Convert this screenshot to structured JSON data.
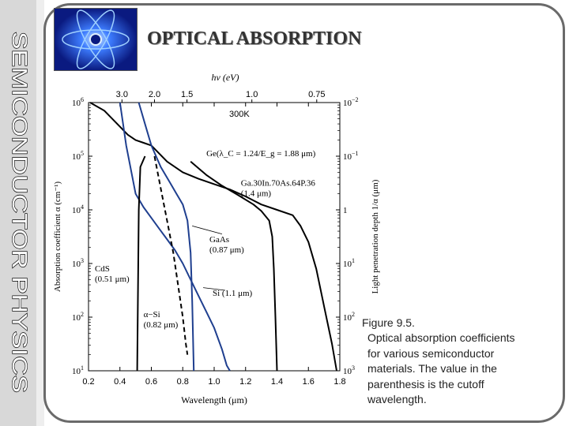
{
  "slide": {
    "title": "OPTICAL ABSORPTION",
    "side_banner": "SEMICONDUCTOR PHYSICS",
    "caption": [
      "Figure 9.5.",
      "Optical absorption coefficients",
      "for various semiconductor",
      "materials. The value in the",
      "parenthesis is the cutoff",
      "wavelength."
    ],
    "colors": {
      "frame": "#6a6a6a",
      "band": "#d8d8d8",
      "logo_bg": "#0a1a80",
      "si_curve": "#1f3f8f",
      "black_curve": "#000000"
    }
  },
  "chart_data": {
    "type": "line",
    "xlabel": "Wavelength (μm)",
    "ylabel": "Absorption coefficient α (cm⁻¹)",
    "y2label": "Light penetration depth 1/α (μm)",
    "x2label": "hν (eV)",
    "annotation_temp": "300K",
    "xlim": [
      0.2,
      1.8
    ],
    "ylim_log10": [
      1,
      6
    ],
    "x_ticks": [
      0.2,
      0.4,
      0.6,
      0.8,
      1.0,
      1.2,
      1.4,
      1.6,
      1.8
    ],
    "x_tick_labels": [
      "0.2",
      "0.4",
      "0.6",
      "0.8",
      "1.0",
      "1.2",
      "1.4",
      "1.6",
      "1.8"
    ],
    "y_ticks_log10": [
      1,
      2,
      3,
      4,
      5,
      6
    ],
    "y_tick_labels": [
      {
        "base": "10",
        "exp": "1"
      },
      {
        "base": "10",
        "exp": "2"
      },
      {
        "base": "10",
        "exp": "3"
      },
      {
        "base": "10",
        "exp": "4"
      },
      {
        "base": "10",
        "exp": "5"
      },
      {
        "base": "10",
        "exp": "6"
      }
    ],
    "y2_tick_labels": [
      {
        "base": "10",
        "exp": "3"
      },
      {
        "base": "10",
        "exp": "2"
      },
      {
        "base": "10",
        "exp": "1"
      },
      {
        "base": "1",
        "exp": ""
      },
      {
        "base": "10",
        "exp": "−1"
      },
      {
        "base": "10",
        "exp": "−2"
      }
    ],
    "top_ticks": [
      {
        "wavelength": 0.413,
        "label": "3.0"
      },
      {
        "wavelength": 0.62,
        "label": "2.0"
      },
      {
        "wavelength": 0.827,
        "label": "1.5"
      },
      {
        "wavelength": 1.24,
        "label": "1.0"
      },
      {
        "wavelength": 1.653,
        "label": "0.75"
      }
    ],
    "series": [
      {
        "name": "Ge",
        "label_lines": [
          "Ge(λ_C = 1.24/E_g = 1.88 μm)"
        ],
        "color": "#000000",
        "dash": false,
        "points": [
          [
            0.21,
            6
          ],
          [
            0.3,
            5.85
          ],
          [
            0.4,
            5.55
          ],
          [
            0.45,
            5.4
          ],
          [
            0.5,
            5.3
          ],
          [
            0.55,
            5.25
          ],
          [
            0.6,
            5.2
          ],
          [
            0.65,
            5.05
          ],
          [
            0.7,
            4.9
          ],
          [
            0.8,
            4.7
          ],
          [
            0.9,
            4.58
          ],
          [
            1.0,
            4.48
          ],
          [
            1.1,
            4.38
          ],
          [
            1.2,
            4.25
          ],
          [
            1.3,
            4.1
          ],
          [
            1.4,
            4.0
          ],
          [
            1.5,
            3.9
          ],
          [
            1.55,
            3.7
          ],
          [
            1.6,
            3.4
          ],
          [
            1.65,
            2.9
          ],
          [
            1.7,
            2.2
          ],
          [
            1.75,
            1.5
          ],
          [
            1.78,
            1
          ]
        ]
      },
      {
        "name": "Ga.30In.70As.64P.36",
        "label_lines": [
          "Ga.30In.70As.64P.36",
          "(1.4 μm)"
        ],
        "color": "#000000",
        "dash": false,
        "points": [
          [
            0.85,
            4.9
          ],
          [
            0.95,
            4.65
          ],
          [
            1.05,
            4.45
          ],
          [
            1.15,
            4.28
          ],
          [
            1.25,
            4.1
          ],
          [
            1.3,
            3.98
          ],
          [
            1.35,
            3.8
          ],
          [
            1.37,
            3.5
          ],
          [
            1.38,
            2.9
          ],
          [
            1.39,
            2
          ],
          [
            1.4,
            1
          ]
        ]
      },
      {
        "name": "GaAs",
        "label_lines": [
          "GaAs",
          "(0.87 μm)"
        ],
        "color": "#1f3f8f",
        "dash": false,
        "points": [
          [
            0.52,
            6
          ],
          [
            0.56,
            5.6
          ],
          [
            0.6,
            5.2
          ],
          [
            0.66,
            4.8
          ],
          [
            0.72,
            4.5
          ],
          [
            0.76,
            4.3
          ],
          [
            0.8,
            4.1
          ],
          [
            0.83,
            3.8
          ],
          [
            0.85,
            3.2
          ],
          [
            0.86,
            2.3
          ],
          [
            0.87,
            1
          ]
        ]
      },
      {
        "name": "Si",
        "label_lines": [
          "Si (1.1 μm)"
        ],
        "color": "#1f3f8f",
        "dash": false,
        "points": [
          [
            0.4,
            6
          ],
          [
            0.44,
            5.2
          ],
          [
            0.5,
            4.3
          ],
          [
            0.55,
            4.05
          ],
          [
            0.6,
            3.85
          ],
          [
            0.65,
            3.65
          ],
          [
            0.7,
            3.45
          ],
          [
            0.75,
            3.25
          ],
          [
            0.8,
            3.0
          ],
          [
            0.85,
            2.7
          ],
          [
            0.9,
            2.4
          ],
          [
            0.95,
            2.1
          ],
          [
            1.0,
            1.8
          ],
          [
            1.05,
            1.4
          ],
          [
            1.08,
            1.1
          ],
          [
            1.1,
            1
          ]
        ]
      },
      {
        "name": "α-Si",
        "label_lines": [
          "α−Si",
          "(0.82 μm)"
        ],
        "color": "#000000",
        "dash": true,
        "points": [
          [
            0.62,
            5
          ],
          [
            0.66,
            4.4
          ],
          [
            0.7,
            3.8
          ],
          [
            0.74,
            3.2
          ],
          [
            0.77,
            2.6
          ],
          [
            0.8,
            2
          ],
          [
            0.82,
            1.5
          ],
          [
            0.83,
            1.3
          ]
        ]
      },
      {
        "name": "CdS",
        "label_lines": [
          "CdS",
          "(0.51 μm)"
        ],
        "color": "#000000",
        "dash": false,
        "points": [
          [
            0.56,
            5
          ],
          [
            0.53,
            4.8
          ],
          [
            0.52,
            4
          ],
          [
            0.515,
            2.5
          ],
          [
            0.51,
            1
          ]
        ]
      }
    ]
  }
}
